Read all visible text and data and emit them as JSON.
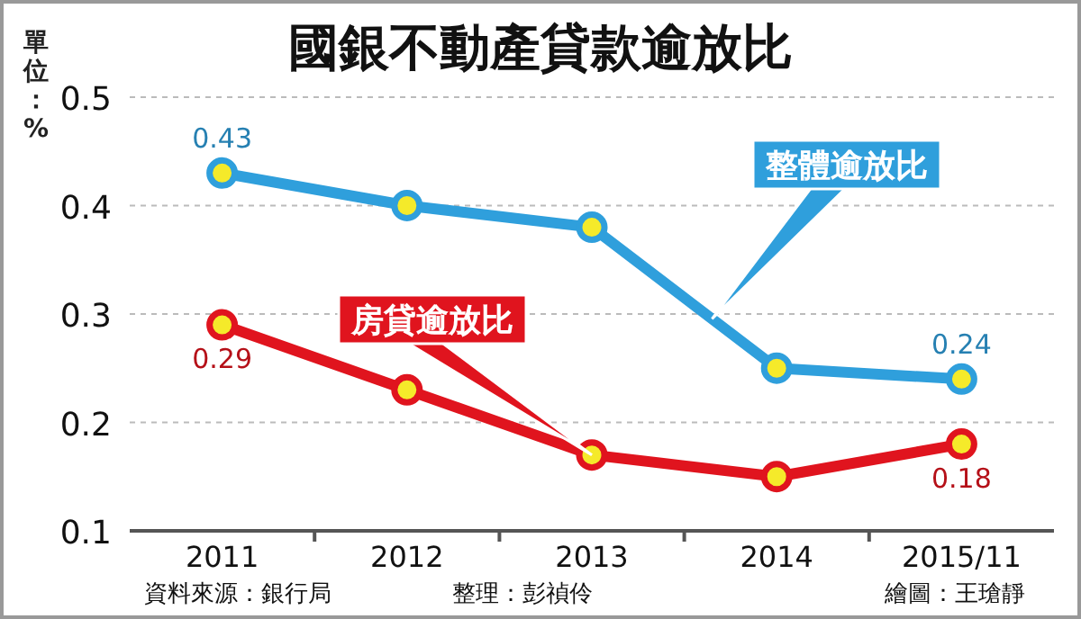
{
  "chart_data": {
    "type": "line",
    "title": "國銀不動產貸款逾放比",
    "ylabel": "單位：%",
    "categories": [
      "2011",
      "2012",
      "2013",
      "2014",
      "2015/11"
    ],
    "series": [
      {
        "name": "整體逾放比",
        "color": "#2f9fdc",
        "values": [
          0.43,
          0.4,
          0.38,
          0.25,
          0.24
        ],
        "value_labels": [
          "0.43",
          null,
          null,
          null,
          "0.24"
        ]
      },
      {
        "name": "房貸逾放比",
        "color": "#e0141e",
        "values": [
          0.29,
          0.23,
          0.17,
          0.15,
          0.18
        ],
        "value_labels": [
          "0.29",
          null,
          null,
          null,
          "0.18"
        ]
      }
    ],
    "ylim": [
      0.1,
      0.5
    ],
    "yticks": [
      0.1,
      0.2,
      0.3,
      0.4,
      0.5
    ],
    "grid": "y",
    "marker": "circle",
    "line_style": "solid",
    "annotations": [
      "資料來源：銀行局",
      "整理：彭禎伶",
      "繪圖：王瑲靜"
    ]
  }
}
